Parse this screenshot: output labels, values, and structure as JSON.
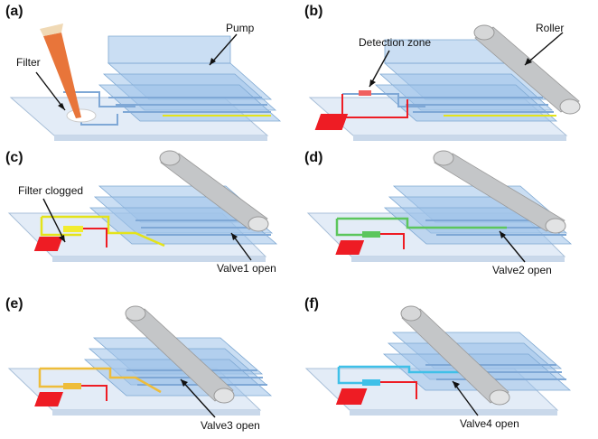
{
  "panels": [
    {
      "label": "(a)",
      "annotations": [
        "Pump",
        "Filter"
      ]
    },
    {
      "label": "(b)",
      "annotations": [
        "Detection zone",
        "Roller"
      ]
    },
    {
      "label": "(c)",
      "annotations": [
        "Filter clogged",
        "Valve1 open"
      ]
    },
    {
      "label": "(d)",
      "annotations": [
        "Valve2 open"
      ]
    },
    {
      "label": "(e)",
      "annotations": [
        "Valve3 open"
      ]
    },
    {
      "label": "(f)",
      "annotations": [
        "Valve4 open"
      ]
    }
  ],
  "colors": {
    "chip_base": "#dfe9f6",
    "pump_layer": "#9ec3ea",
    "channel_default": "#7fa8d6",
    "detection_zone": "#ee1c24",
    "clogged_yellow": "#e4e31a",
    "valve2_green": "#5cc65c",
    "valve3_orange": "#eebd3a",
    "valve4_cyan": "#3fc0e8",
    "roller": "#c4c6c8",
    "pipette": "#e8753a"
  }
}
